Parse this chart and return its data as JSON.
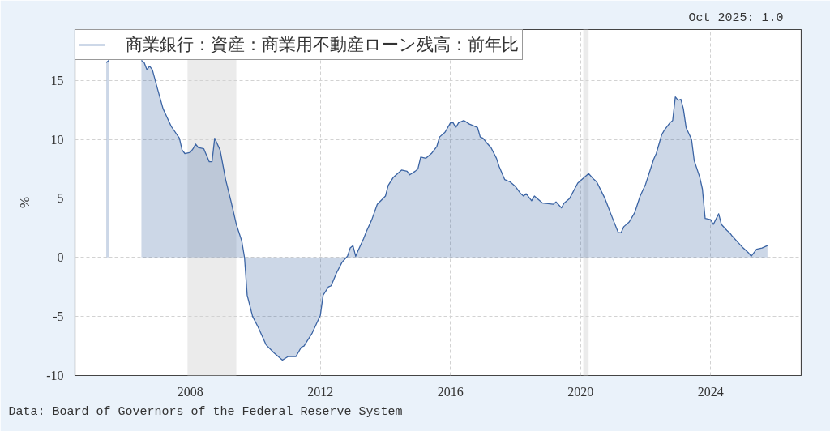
{
  "chart_data": {
    "type": "area",
    "x": [
      "2005-06",
      "2005-07",
      "2006-01",
      "2006-07",
      "2006-08",
      "2006-09",
      "2006-10",
      "2006-11",
      "2007-01",
      "2007-03",
      "2007-04",
      "2007-06",
      "2007-09",
      "2007-10",
      "2007-11",
      "2008-01",
      "2008-02",
      "2008-03",
      "2008-04",
      "2008-06",
      "2008-08",
      "2008-09",
      "2008-10",
      "2008-12",
      "2009-02",
      "2009-04",
      "2009-06",
      "2009-08",
      "2009-09",
      "2009-10",
      "2009-12",
      "2010-02",
      "2010-05",
      "2010-08",
      "2010-11",
      "2011-01",
      "2011-04",
      "2011-06",
      "2011-07",
      "2011-10",
      "2012-01",
      "2012-02",
      "2012-04",
      "2012-05",
      "2012-07",
      "2012-09",
      "2012-11",
      "2012-12",
      "2013-01",
      "2013-02",
      "2013-03",
      "2013-05",
      "2013-06",
      "2013-08",
      "2013-10",
      "2014-01",
      "2014-02",
      "2014-04",
      "2014-07",
      "2014-09",
      "2014-10",
      "2014-12",
      "2015-01",
      "2015-02",
      "2015-04",
      "2015-06",
      "2015-08",
      "2015-09",
      "2015-11",
      "2016-01",
      "2016-02",
      "2016-03",
      "2016-04",
      "2016-06",
      "2016-08",
      "2016-11",
      "2016-12",
      "2017-01",
      "2017-02",
      "2017-04",
      "2017-06",
      "2017-07",
      "2017-09",
      "2017-11",
      "2018-01",
      "2018-03",
      "2018-04",
      "2018-05",
      "2018-07",
      "2018-08",
      "2018-11",
      "2019-03",
      "2019-04",
      "2019-06",
      "2019-07",
      "2019-09",
      "2019-12",
      "2020-01",
      "2020-04",
      "2020-06",
      "2020-07",
      "2020-10",
      "2020-12",
      "2021-01",
      "2021-03",
      "2021-04",
      "2021-05",
      "2021-07",
      "2021-09",
      "2021-11",
      "2022-01",
      "2022-04",
      "2022-05",
      "2022-07",
      "2022-08",
      "2022-10",
      "2022-11",
      "2022-12",
      "2023-01",
      "2023-02",
      "2023-03",
      "2023-04",
      "2023-06",
      "2023-07",
      "2023-09",
      "2023-10",
      "2023-11",
      "2024-01",
      "2024-02",
      "2024-04",
      "2024-05",
      "2024-07",
      "2024-08",
      "2024-09",
      "2024-11",
      "2025-01",
      "2025-03",
      "2025-04",
      "2025-06",
      "2025-08",
      "2025-10"
    ],
    "series": [
      {
        "name": "商業銀行：資産：商業用不動産ローン残高：前年比",
        "color": "#3b64a4",
        "values": [
          16.5,
          16.7,
          null,
          16.7,
          16.5,
          15.9,
          16.2,
          15.9,
          14.2,
          12.6,
          12.1,
          11.1,
          10.1,
          9.1,
          8.8,
          8.9,
          9.2,
          9.6,
          9.3,
          9.2,
          8.1,
          8.1,
          10.1,
          9.1,
          6.6,
          4.8,
          2.8,
          1.4,
          0.0,
          -3.2,
          -5.0,
          -5.9,
          -7.4,
          -8.1,
          -8.7,
          -8.4,
          -8.4,
          -7.6,
          -7.5,
          -6.4,
          -4.9,
          -3.2,
          -2.5,
          -2.4,
          -1.3,
          -0.4,
          0.1,
          0.8,
          1.0,
          0.1,
          0.6,
          1.6,
          2.2,
          3.2,
          4.5,
          5.2,
          6.1,
          6.8,
          7.4,
          7.3,
          7.0,
          7.3,
          7.5,
          8.5,
          8.4,
          8.8,
          9.4,
          10.2,
          10.6,
          11.4,
          11.4,
          11.0,
          11.4,
          11.6,
          11.3,
          11.0,
          10.2,
          10.1,
          9.8,
          9.3,
          8.4,
          7.7,
          6.6,
          6.4,
          6.0,
          5.4,
          5.2,
          5.4,
          4.8,
          5.2,
          4.6,
          4.5,
          4.7,
          4.2,
          4.6,
          5.0,
          6.3,
          6.5,
          7.1,
          6.6,
          6.4,
          5.0,
          3.8,
          3.2,
          2.1,
          2.1,
          2.6,
          3.0,
          3.8,
          5.2,
          6.2,
          8.3,
          8.8,
          10.4,
          10.8,
          11.4,
          11.6,
          13.6,
          13.3,
          13.4,
          12.6,
          11.0,
          10.0,
          8.2,
          6.8,
          5.8,
          3.3,
          3.2,
          2.8,
          3.7,
          2.8,
          2.3,
          2.1,
          1.8,
          1.3,
          0.8,
          0.4,
          0.1,
          0.7,
          0.8,
          1.0
        ]
      }
    ],
    "ylabel": "%",
    "xlim": [
      "2004-06-15",
      "2026-10-15"
    ],
    "ylim": [
      -10,
      19.3
    ],
    "xticks": [
      "2008",
      "2012",
      "2016",
      "2020",
      "2024"
    ],
    "yticks": [
      -10,
      -5,
      0,
      5,
      10,
      15
    ],
    "bands": [
      {
        "axis": "x",
        "from": "2007-12",
        "to": "2009-06",
        "color": "#ebebeb"
      },
      {
        "axis": "x",
        "from": "2020-02",
        "to": "2020-04",
        "color": "#ebebeb"
      }
    ],
    "annotations": [
      "Oct 2025: 1.0",
      "Data: Board of Governors of the Federal Reserve System"
    ],
    "grid": true,
    "legend": "top left"
  }
}
